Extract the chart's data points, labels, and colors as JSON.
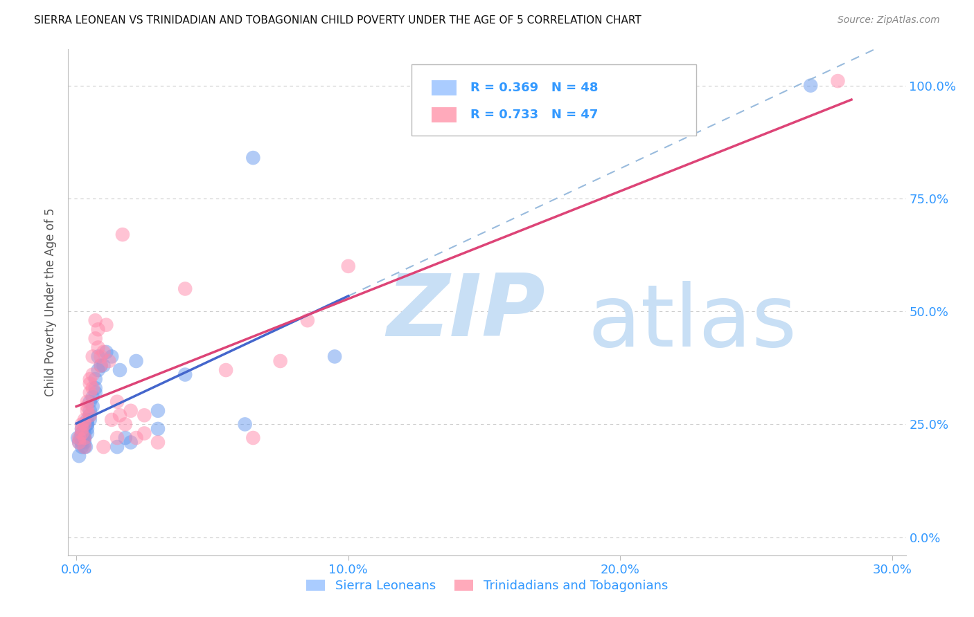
{
  "title": "SIERRA LEONEAN VS TRINIDADIAN AND TOBAGONIAN CHILD POVERTY UNDER THE AGE OF 5 CORRELATION CHART",
  "source": "Source: ZipAtlas.com",
  "xlabel_ticks": [
    "0.0%",
    "10.0%",
    "20.0%",
    "30.0%"
  ],
  "xlabel_vals": [
    0.0,
    0.1,
    0.2,
    0.3
  ],
  "ylabel_ticks": [
    "100.0%",
    "75.0%",
    "50.0%",
    "25.0%",
    "0.0%"
  ],
  "ylabel_vals": [
    1.0,
    0.75,
    0.5,
    0.25,
    0.0
  ],
  "ylabel_label": "Child Poverty Under the Age of 5",
  "xlim": [
    -0.003,
    0.305
  ],
  "ylim": [
    -0.04,
    1.08
  ],
  "watermark_zip": "ZIP",
  "watermark_atlas": "atlas",
  "watermark_color": "#c8dff5",
  "series": [
    {
      "name": "Sierra Leoneans",
      "R": 0.369,
      "N": 48,
      "color": "#6699ee",
      "alpha": 0.5,
      "x": [
        0.0005,
        0.001,
        0.001,
        0.0015,
        0.002,
        0.002,
        0.002,
        0.002,
        0.0025,
        0.003,
        0.003,
        0.003,
        0.003,
        0.0035,
        0.003,
        0.003,
        0.004,
        0.004,
        0.004,
        0.004,
        0.004,
        0.005,
        0.005,
        0.005,
        0.005,
        0.006,
        0.006,
        0.007,
        0.007,
        0.007,
        0.008,
        0.008,
        0.009,
        0.01,
        0.011,
        0.013,
        0.015,
        0.016,
        0.018,
        0.02,
        0.022,
        0.03,
        0.03,
        0.04,
        0.062,
        0.065,
        0.095,
        0.27
      ],
      "y": [
        0.22,
        0.18,
        0.21,
        0.22,
        0.2,
        0.23,
        0.21,
        0.24,
        0.22,
        0.2,
        0.22,
        0.23,
        0.21,
        0.2,
        0.24,
        0.22,
        0.25,
        0.26,
        0.24,
        0.23,
        0.25,
        0.27,
        0.26,
        0.28,
        0.3,
        0.29,
        0.31,
        0.33,
        0.35,
        0.32,
        0.37,
        0.4,
        0.38,
        0.38,
        0.41,
        0.4,
        0.2,
        0.37,
        0.22,
        0.21,
        0.39,
        0.24,
        0.28,
        0.36,
        0.25,
        0.84,
        0.4,
        1.0
      ]
    },
    {
      "name": "Trinidadians and Tobagonians",
      "R": 0.733,
      "N": 47,
      "color": "#ff88aa",
      "alpha": 0.5,
      "x": [
        0.001,
        0.001,
        0.002,
        0.002,
        0.002,
        0.003,
        0.003,
        0.003,
        0.003,
        0.004,
        0.004,
        0.004,
        0.005,
        0.005,
        0.005,
        0.005,
        0.006,
        0.006,
        0.006,
        0.007,
        0.007,
        0.008,
        0.008,
        0.009,
        0.009,
        0.01,
        0.01,
        0.011,
        0.012,
        0.013,
        0.015,
        0.015,
        0.016,
        0.017,
        0.018,
        0.02,
        0.022,
        0.025,
        0.025,
        0.03,
        0.04,
        0.055,
        0.065,
        0.075,
        0.085,
        0.1,
        0.28
      ],
      "y": [
        0.22,
        0.21,
        0.23,
        0.25,
        0.24,
        0.2,
        0.22,
        0.26,
        0.25,
        0.28,
        0.3,
        0.29,
        0.27,
        0.32,
        0.35,
        0.34,
        0.33,
        0.36,
        0.4,
        0.44,
        0.48,
        0.42,
        0.46,
        0.4,
        0.38,
        0.41,
        0.2,
        0.47,
        0.39,
        0.26,
        0.22,
        0.3,
        0.27,
        0.67,
        0.25,
        0.28,
        0.22,
        0.23,
        0.27,
        0.21,
        0.55,
        0.37,
        0.22,
        0.39,
        0.48,
        0.6,
        1.01
      ]
    }
  ],
  "reg_blue_color": "#4466cc",
  "reg_pink_color": "#dd4477",
  "diag_color": "#99bbdd",
  "title_color": "#111111",
  "tick_color": "#3399ff",
  "source_color": "#888888",
  "bg_color": "#ffffff",
  "grid_color": "#cccccc",
  "legend_box_color": "#cccccc",
  "legend_text_color": "#3399ff"
}
